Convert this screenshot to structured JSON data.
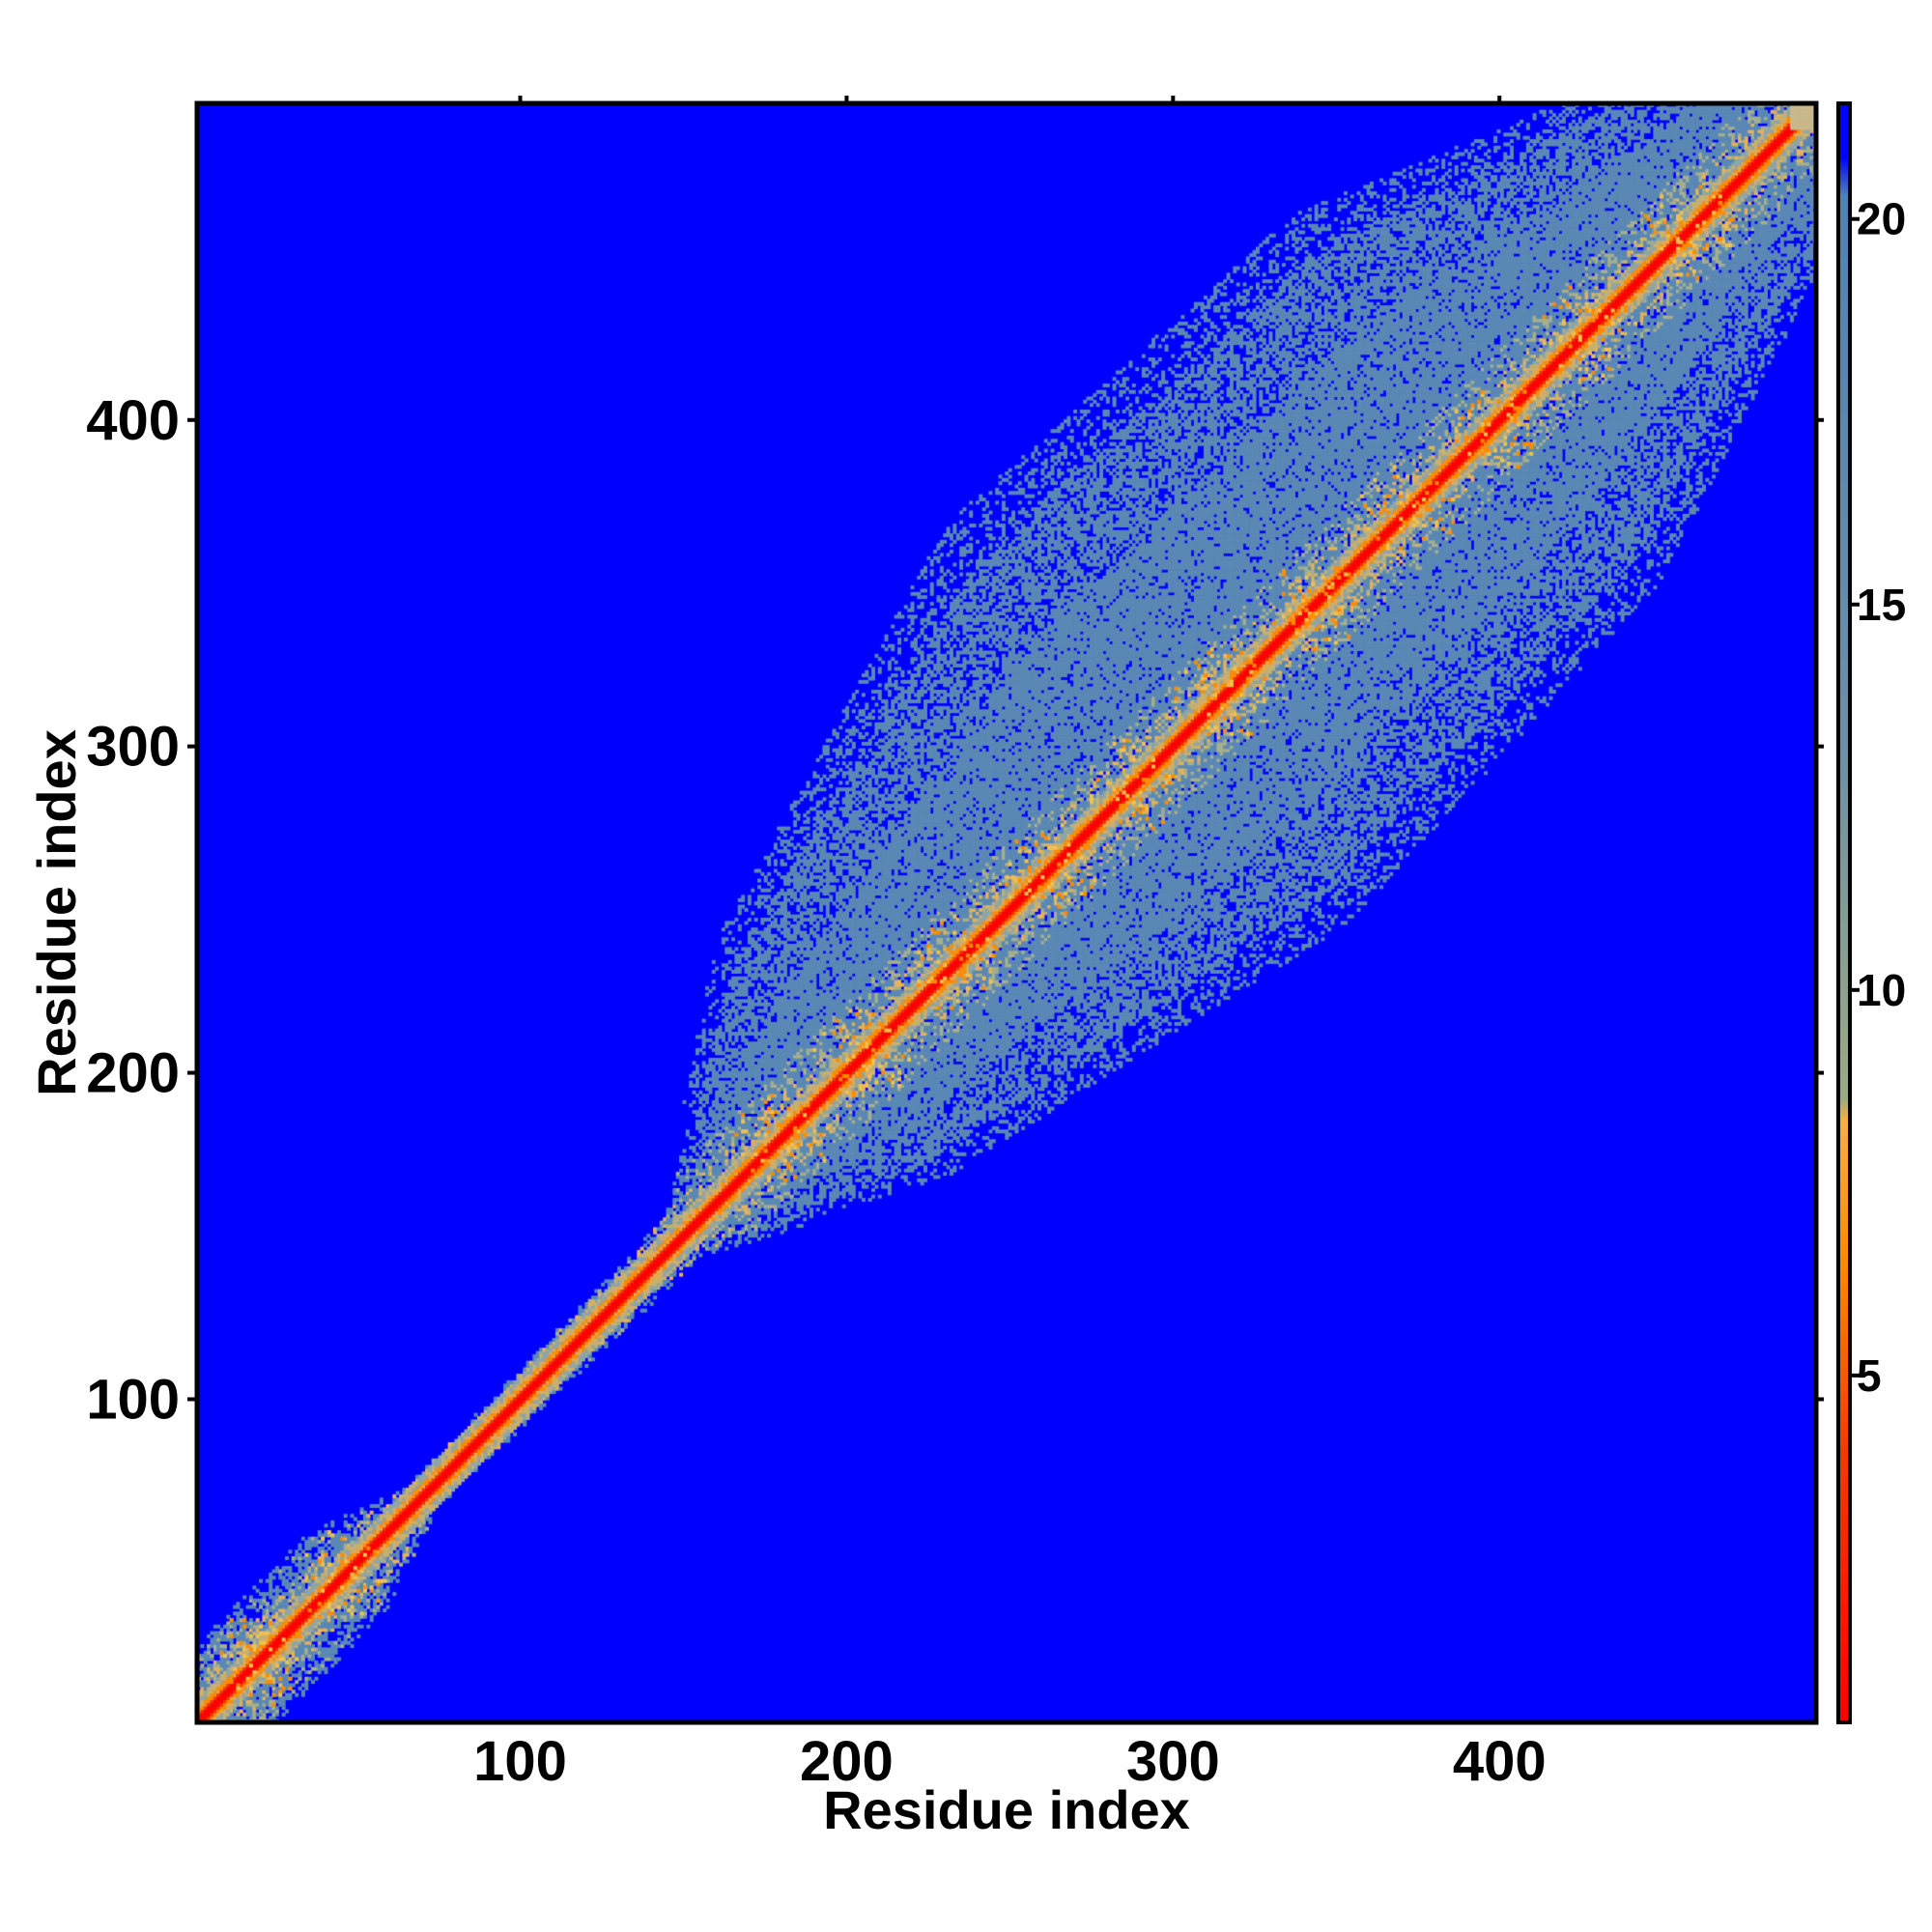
{
  "chart_data": {
    "type": "heatmap",
    "title": "",
    "xlabel": "Residue index",
    "ylabel": "Residue index",
    "n_residues": 497,
    "xlim": [
      1,
      497
    ],
    "ylim": [
      1,
      497
    ],
    "x_ticks": [
      100,
      200,
      300,
      400
    ],
    "y_ticks": [
      100,
      200,
      300,
      400
    ],
    "colorbar": {
      "range": [
        0.5,
        21.5
      ],
      "ticks": [
        5,
        10,
        15,
        20
      ],
      "stops": [
        {
          "value": 0.5,
          "color": "#ff0000"
        },
        {
          "value": 4.0,
          "color": "#f23a00"
        },
        {
          "value": 6.5,
          "color": "#ff8a00"
        },
        {
          "value": 8.3,
          "color": "#f5b041"
        },
        {
          "value": 8.6,
          "color": "#9aab84"
        },
        {
          "value": 13.0,
          "color": "#6f8fa5"
        },
        {
          "value": 20.3,
          "color": "#4f82b4"
        },
        {
          "value": 20.8,
          "color": "#0000ff"
        },
        {
          "value": 21.5,
          "color": "#0000ff"
        }
      ]
    },
    "cutoff_value": 21,
    "background_color": "#0000ff",
    "contact_color": "#5b89b4",
    "description_points": [
      {
        "residue": 10,
        "band_halfwidth": 25
      },
      {
        "residue": 45,
        "band_halfwidth": 25
      },
      {
        "residue": 70,
        "band_halfwidth": 8
      },
      {
        "residue": 150,
        "band_halfwidth": 12
      },
      {
        "residue": 200,
        "band_halfwidth": 70
      },
      {
        "residue": 300,
        "band_halfwidth": 120
      },
      {
        "residue": 400,
        "band_halfwidth": 110
      },
      {
        "residue": 470,
        "band_halfwidth": 60
      }
    ]
  }
}
